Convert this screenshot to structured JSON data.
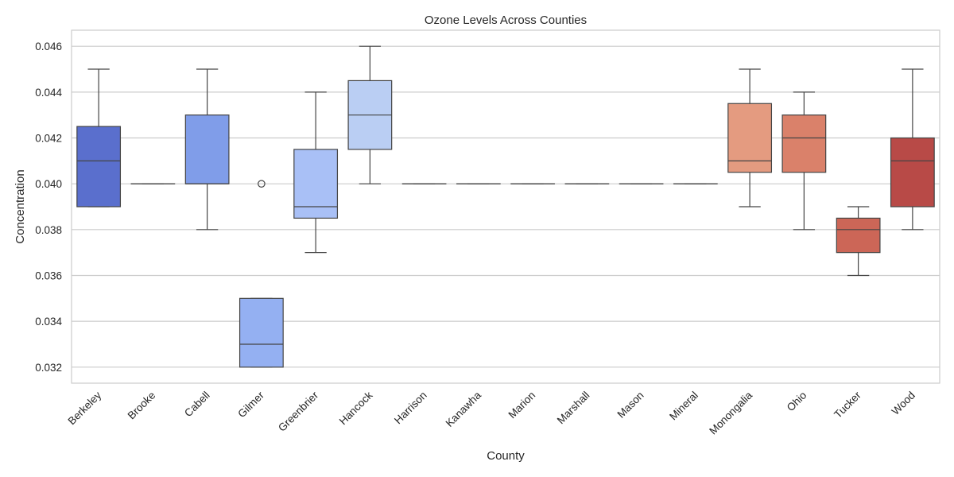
{
  "chart_data": {
    "type": "box",
    "title": "Ozone Levels Across Counties",
    "xlabel": "County",
    "ylabel": "Concentration",
    "ylim": [
      0.0313,
      0.0467
    ],
    "y_ticks": [
      "0.032",
      "0.034",
      "0.036",
      "0.038",
      "0.040",
      "0.042",
      "0.044",
      "0.046"
    ],
    "y_tick_values": [
      0.032,
      0.034,
      0.036,
      0.038,
      0.04,
      0.042,
      0.044,
      0.046
    ],
    "grid": true,
    "categories": [
      "Berkeley",
      "Brooke",
      "Cabell",
      "Gilmer",
      "Greenbrier",
      "Hancock",
      "Harrison",
      "Kanawha",
      "Marion",
      "Marshall",
      "Mason",
      "Mineral",
      "Monongalia",
      "Ohio",
      "Tucker",
      "Wood"
    ],
    "boxes": [
      {
        "county": "Berkeley",
        "whisker_low": 0.039,
        "q1": 0.039,
        "median": 0.041,
        "q3": 0.0425,
        "whisker_high": 0.045,
        "outliers": [],
        "color": "#5a6fcd"
      },
      {
        "county": "Brooke",
        "whisker_low": 0.04,
        "q1": 0.04,
        "median": 0.04,
        "q3": 0.04,
        "whisker_high": 0.04,
        "outliers": [],
        "color": "#6b86e0"
      },
      {
        "county": "Cabell",
        "whisker_low": 0.038,
        "q1": 0.04,
        "median": 0.04,
        "q3": 0.043,
        "whisker_high": 0.045,
        "outliers": [],
        "color": "#809de9"
      },
      {
        "county": "Gilmer",
        "whisker_low": 0.032,
        "q1": 0.032,
        "median": 0.033,
        "q3": 0.035,
        "whisker_high": 0.035,
        "outliers": [
          0.04
        ],
        "color": "#94b0f2"
      },
      {
        "county": "Greenbrier",
        "whisker_low": 0.037,
        "q1": 0.0385,
        "median": 0.039,
        "q3": 0.0415,
        "whisker_high": 0.044,
        "outliers": [],
        "color": "#a9c0f6"
      },
      {
        "county": "Hancock",
        "whisker_low": 0.04,
        "q1": 0.0415,
        "median": 0.043,
        "q3": 0.0445,
        "whisker_high": 0.046,
        "outliers": [],
        "color": "#bacef3"
      },
      {
        "county": "Harrison",
        "whisker_low": 0.04,
        "q1": 0.04,
        "median": 0.04,
        "q3": 0.04,
        "whisker_high": 0.04,
        "outliers": [],
        "color": "#cbd8ee"
      },
      {
        "county": "Kanawha",
        "whisker_low": 0.04,
        "q1": 0.04,
        "median": 0.04,
        "q3": 0.04,
        "whisker_high": 0.04,
        "outliers": [],
        "color": "#d8dce4"
      },
      {
        "county": "Marion",
        "whisker_low": 0.04,
        "q1": 0.04,
        "median": 0.04,
        "q3": 0.04,
        "whisker_high": 0.04,
        "outliers": [],
        "color": "#e4d8d1"
      },
      {
        "county": "Marshall",
        "whisker_low": 0.04,
        "q1": 0.04,
        "median": 0.04,
        "q3": 0.04,
        "whisker_high": 0.04,
        "outliers": [],
        "color": "#ecccbc"
      },
      {
        "county": "Mason",
        "whisker_low": 0.04,
        "q1": 0.04,
        "median": 0.04,
        "q3": 0.04,
        "whisker_high": 0.04,
        "outliers": [],
        "color": "#f1bca5"
      },
      {
        "county": "Mineral",
        "whisker_low": 0.04,
        "q1": 0.04,
        "median": 0.04,
        "q3": 0.04,
        "whisker_high": 0.04,
        "outliers": [],
        "color": "#f0aa8d"
      },
      {
        "county": "Monongalia",
        "whisker_low": 0.039,
        "q1": 0.0405,
        "median": 0.041,
        "q3": 0.0435,
        "whisker_high": 0.045,
        "outliers": [],
        "color": "#e49b80"
      },
      {
        "county": "Ohio",
        "whisker_low": 0.038,
        "q1": 0.0405,
        "median": 0.042,
        "q3": 0.043,
        "whisker_high": 0.044,
        "outliers": [],
        "color": "#da816a"
      },
      {
        "county": "Tucker",
        "whisker_low": 0.036,
        "q1": 0.037,
        "median": 0.038,
        "q3": 0.0385,
        "whisker_high": 0.039,
        "outliers": [],
        "color": "#cc6657"
      },
      {
        "county": "Wood",
        "whisker_low": 0.038,
        "q1": 0.039,
        "median": 0.041,
        "q3": 0.042,
        "whisker_high": 0.045,
        "outliers": [],
        "color": "#b84a47"
      }
    ]
  }
}
